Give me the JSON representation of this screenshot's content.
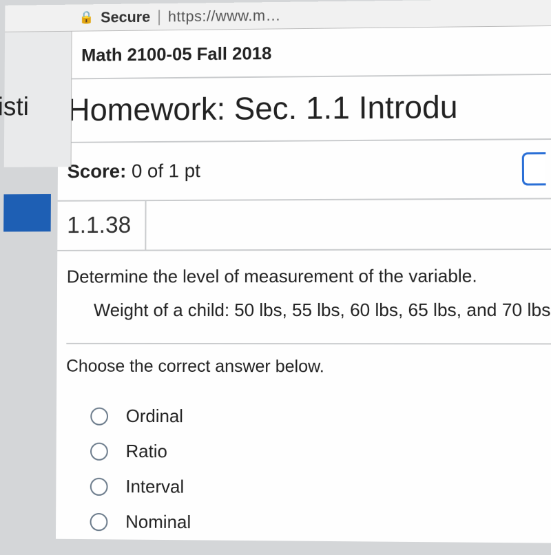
{
  "browser": {
    "secure_label": "Secure",
    "url_fragment": "https://www.m…"
  },
  "sidebar": {
    "tab_fragment": "isti"
  },
  "course": {
    "title": "Math 2100-05 Fall 2018"
  },
  "homework": {
    "title": "Homework: Sec. 1.1 Introdu"
  },
  "score": {
    "label": "Score:",
    "value": "0 of 1 pt"
  },
  "question": {
    "number": "1.1.38",
    "stem": "Determine the level of measurement of the variable.",
    "data": "Weight of a child: 50 lbs, 55 lbs, 60 lbs, 65 lbs, and 70 lbs",
    "instruction": "Choose the correct answer below.",
    "options": [
      "Ordinal",
      "Ratio",
      "Interval",
      "Nominal"
    ]
  },
  "colors": {
    "accent_blue": "#1e5fb4",
    "button_border": "#2a6fd6",
    "divider": "#c9cbcd",
    "text": "#222222",
    "bg": "#fefefe"
  }
}
